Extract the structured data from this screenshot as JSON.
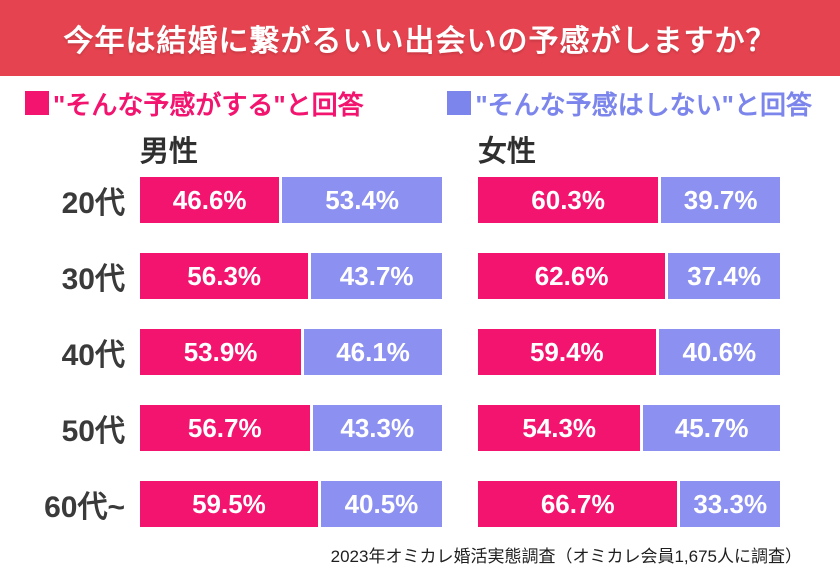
{
  "header": {
    "title": "今年は結婚に繋がるいい出会いの予感がしますか？"
  },
  "legend": {
    "items": [
      {
        "label": "■\"そんな予感がする\"と回答",
        "swatch": "■",
        "color": "#f2146e"
      },
      {
        "label": "■\"そんな予感はしない\"と回答",
        "swatch": "■",
        "color": "#7b85eb"
      }
    ]
  },
  "colors": {
    "banner_bg": "#e5434f",
    "banner_text": "#ffffff",
    "yes_bar": "#f2146e",
    "no_bar": "#8c90f0",
    "bar_label": "#ffffff",
    "age_label": "#3a3a3a",
    "group_header": "#2f2f2f",
    "footer_text": "#1f1f1f",
    "background": "#ffffff"
  },
  "chart_data": {
    "type": "bar",
    "orientation": "horizontal",
    "stacking": "percent",
    "title": "今年は結婚に繋がるいい出会いの予感がしますか？",
    "categories": [
      "20代",
      "30代",
      "40代",
      "50代",
      "60代~"
    ],
    "series_names": [
      "そんな予感がする",
      "そんな予感はしない"
    ],
    "groups": [
      {
        "name": "男性",
        "series": [
          {
            "name": "そんな予感がする",
            "values": [
              46.6,
              56.3,
              53.9,
              56.7,
              59.5
            ]
          },
          {
            "name": "そんな予感はしない",
            "values": [
              53.4,
              43.7,
              46.1,
              43.3,
              40.5
            ]
          }
        ]
      },
      {
        "name": "女性",
        "series": [
          {
            "name": "そんな予感がする",
            "values": [
              60.3,
              62.6,
              59.4,
              54.3,
              66.7
            ]
          },
          {
            "name": "そんな予感はしない",
            "values": [
              39.7,
              37.4,
              40.6,
              45.7,
              33.3
            ]
          }
        ]
      }
    ],
    "value_suffix": "%",
    "xlim": [
      0,
      100
    ],
    "grid": false,
    "legend_position": "top"
  },
  "footer": {
    "source": "2023年オミカレ婚活実態調査（オミカレ会員1,675人に調査）"
  }
}
